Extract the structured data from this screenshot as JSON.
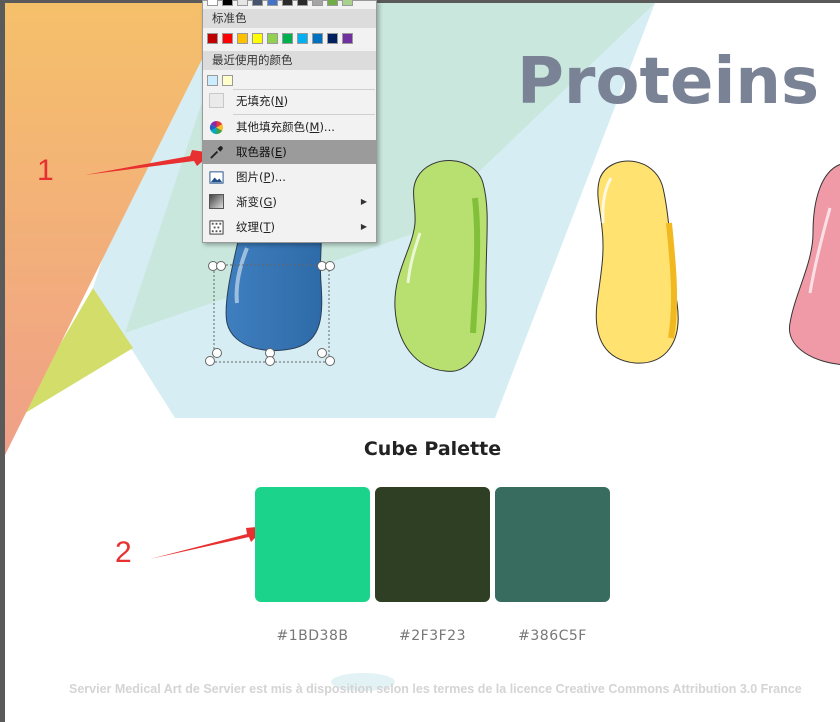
{
  "slide": {
    "title": "Proteins",
    "palette_title": "Cube Palette",
    "footer": "Servier Medical Art de Servier est mis à disposition selon les termes de la licence Creative Commons Attribution 3.0 France"
  },
  "palette": [
    {
      "hex": "#1BD38B",
      "color": "#1bd38b"
    },
    {
      "hex": "#2F3F23",
      "color": "#2f3f23"
    },
    {
      "hex": "#386C5F",
      "color": "#386c5f"
    }
  ],
  "annotations": [
    {
      "number": "1",
      "color": "#e83030"
    },
    {
      "number": "2",
      "color": "#e83030"
    }
  ],
  "context_menu": {
    "standard_colors_header": "标准色",
    "standard_colors": [
      "#c00000",
      "#ff0000",
      "#ffc000",
      "#ffff00",
      "#92d050",
      "#00b050",
      "#00b0f0",
      "#0070c0",
      "#002060",
      "#7030a0"
    ],
    "recent_colors_header": "最近使用的颜色",
    "recent_colors": [
      "#ccecff",
      "#ffffcc"
    ],
    "items": [
      {
        "label": "无填充(",
        "key": "N",
        "suffix": ")",
        "icon": "no-fill-swatch-icon"
      },
      {
        "label": "其他填充颜色(",
        "key": "M",
        "suffix": ")...",
        "icon": "color-wheel-icon"
      },
      {
        "label": "取色器(",
        "key": "E",
        "suffix": ")",
        "icon": "eyedropper-icon",
        "highlighted": true
      },
      {
        "label": "图片(",
        "key": "P",
        "suffix": ")...",
        "icon": "picture-icon"
      },
      {
        "label": "渐变(",
        "key": "G",
        "suffix": ")",
        "icon": "gradient-icon",
        "submenu": true
      },
      {
        "label": "纹理(",
        "key": "T",
        "suffix": ")",
        "icon": "texture-icon",
        "submenu": true
      }
    ]
  }
}
